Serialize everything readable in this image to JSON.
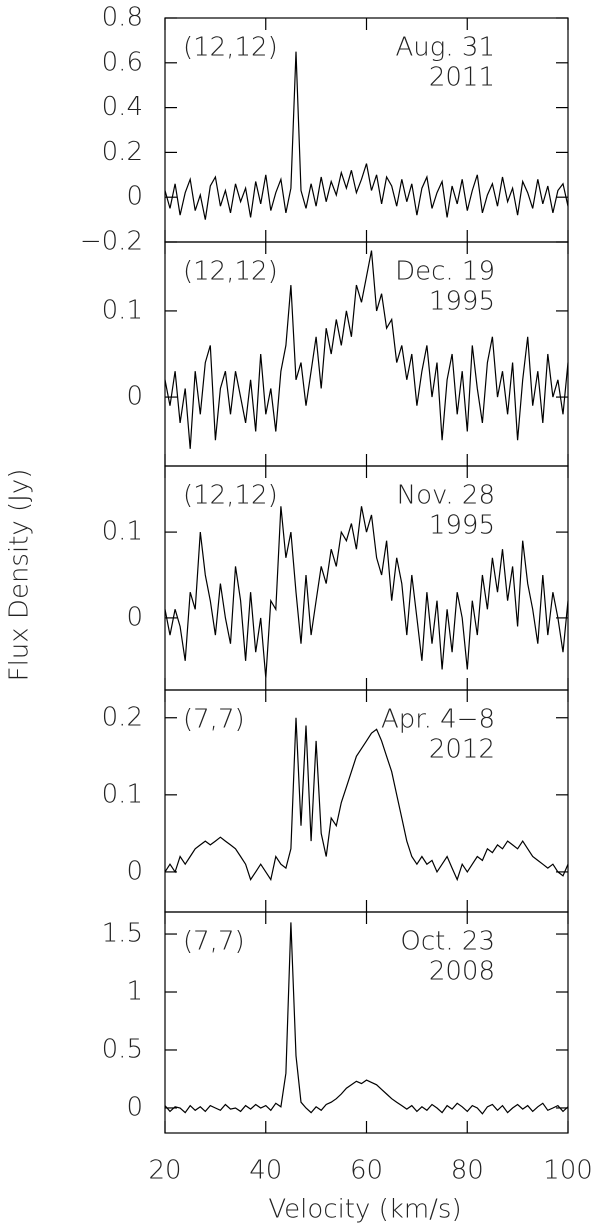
{
  "chart_data": [
    {
      "type": "line",
      "transition": "(12,12)",
      "date": "Aug. 31",
      "year": "2011",
      "color": "#000000",
      "x": [
        20,
        21,
        22,
        23,
        24,
        25,
        26,
        27,
        28,
        29,
        30,
        31,
        32,
        33,
        34,
        35,
        36,
        37,
        38,
        39,
        40,
        41,
        42,
        43,
        44,
        45,
        46,
        47,
        48,
        49,
        50,
        51,
        52,
        53,
        54,
        55,
        56,
        57,
        58,
        59,
        60,
        61,
        62,
        63,
        64,
        65,
        66,
        67,
        68,
        69,
        70,
        71,
        72,
        73,
        74,
        75,
        76,
        77,
        78,
        79,
        80,
        81,
        82,
        83,
        84,
        85,
        86,
        87,
        88,
        89,
        90,
        91,
        92,
        93,
        94,
        95,
        96,
        97,
        98,
        99,
        100
      ],
      "values": [
        0.03,
        -0.05,
        0.06,
        -0.08,
        0.02,
        0.08,
        -0.06,
        0.01,
        -0.1,
        0.05,
        0.09,
        -0.04,
        0.03,
        -0.07,
        0.06,
        -0.02,
        0.04,
        -0.09,
        0.07,
        -0.03,
        0.1,
        -0.06,
        0.02,
        0.08,
        -0.07,
        0.04,
        0.65,
        0.03,
        -0.05,
        0.06,
        -0.04,
        0.09,
        -0.02,
        0.07,
        0.01,
        0.11,
        0.04,
        0.12,
        0.02,
        0.08,
        0.15,
        0.03,
        0.1,
        -0.03,
        0.09,
        0.05,
        -0.04,
        0.08,
        -0.02,
        0.06,
        -0.08,
        0.04,
        0.09,
        -0.05,
        0.02,
        0.07,
        -0.09,
        0.05,
        -0.03,
        0.08,
        -0.06,
        0.03,
        0.1,
        -0.07,
        0.01,
        0.06,
        -0.04,
        0.09,
        -0.02,
        0.04,
        -0.08,
        0.07,
        0.02,
        -0.05,
        0.08,
        -0.03,
        0.05,
        -0.07,
        0.03,
        0.06,
        -0.04
      ],
      "xlim": [
        20,
        100
      ],
      "xticks": [
        20,
        40,
        60,
        80,
        100
      ],
      "ylim": [
        -0.2,
        0.8
      ],
      "yticks": [
        {
          "value": -0.2,
          "label": "−0.2"
        },
        0,
        0.2,
        0.4,
        0.6,
        0.8
      ]
    },
    {
      "type": "line",
      "transition": "(12,12)",
      "date": "Dec. 19",
      "year": "1995",
      "color": "#000000",
      "x": [
        20,
        21,
        22,
        23,
        24,
        25,
        26,
        27,
        28,
        29,
        30,
        31,
        32,
        33,
        34,
        35,
        36,
        37,
        38,
        39,
        40,
        41,
        42,
        43,
        44,
        45,
        46,
        47,
        48,
        49,
        50,
        51,
        52,
        53,
        54,
        55,
        56,
        57,
        58,
        59,
        60,
        61,
        62,
        63,
        64,
        65,
        66,
        67,
        68,
        69,
        70,
        71,
        72,
        73,
        74,
        75,
        76,
        77,
        78,
        79,
        80,
        81,
        82,
        83,
        84,
        85,
        86,
        87,
        88,
        89,
        90,
        91,
        92,
        93,
        94,
        95,
        96,
        97,
        98,
        99,
        100
      ],
      "values": [
        0.02,
        -0.01,
        0.03,
        -0.03,
        0.01,
        -0.06,
        0.03,
        -0.02,
        0.04,
        0.06,
        -0.05,
        0.01,
        0.03,
        -0.02,
        0.03,
        0,
        -0.03,
        0.02,
        -0.04,
        0.05,
        -0.02,
        0.01,
        -0.04,
        0.03,
        0.06,
        0.13,
        0.02,
        0.04,
        -0.01,
        0.03,
        0.07,
        0.01,
        0.08,
        0.05,
        0.09,
        0.06,
        0.1,
        0.07,
        0.13,
        0.11,
        0.14,
        0.17,
        0.1,
        0.12,
        0.08,
        0.09,
        0.04,
        0.06,
        0.02,
        0.05,
        -0.01,
        0.03,
        0.06,
        0,
        0.04,
        -0.05,
        0.02,
        0.05,
        -0.02,
        0.03,
        -0.04,
        0.06,
        0.01,
        -0.03,
        0.04,
        0.07,
        0,
        0.03,
        -0.02,
        0.04,
        -0.05,
        0.02,
        0.07,
        -0.01,
        0.03,
        -0.03,
        0.05,
        0,
        0.02,
        -0.02,
        0.04
      ],
      "xlim": [
        20,
        100
      ],
      "xticks": [
        20,
        40,
        60,
        80,
        100
      ],
      "ylim": [
        -0.08,
        0.18
      ],
      "yticks": [
        0,
        0.1
      ]
    },
    {
      "type": "line",
      "transition": "(12,12)",
      "date": "Nov. 28",
      "year": "1995",
      "color": "#000000",
      "ylabel": "Flux Density (Jy)",
      "x": [
        20,
        21,
        22,
        23,
        24,
        25,
        26,
        27,
        28,
        29,
        30,
        31,
        32,
        33,
        34,
        35,
        36,
        37,
        38,
        39,
        40,
        41,
        42,
        43,
        44,
        45,
        46,
        47,
        48,
        49,
        50,
        51,
        52,
        53,
        54,
        55,
        56,
        57,
        58,
        59,
        60,
        61,
        62,
        63,
        64,
        65,
        66,
        67,
        68,
        69,
        70,
        71,
        72,
        73,
        74,
        75,
        76,
        77,
        78,
        79,
        80,
        81,
        82,
        83,
        84,
        85,
        86,
        87,
        88,
        89,
        90,
        91,
        92,
        93,
        94,
        95,
        96,
        97,
        98,
        99,
        100
      ],
      "values": [
        0.01,
        -0.02,
        0.01,
        -0.01,
        -0.05,
        0.03,
        0.01,
        0.1,
        0.05,
        0.02,
        -0.02,
        0.04,
        0,
        -0.03,
        0.06,
        0.02,
        -0.05,
        0.03,
        -0.04,
        0,
        -0.07,
        0.02,
        0.01,
        0.13,
        0.07,
        0.1,
        0.03,
        -0.03,
        0.05,
        -0.02,
        0.02,
        0.06,
        0.04,
        0.08,
        0.06,
        0.1,
        0.09,
        0.11,
        0.08,
        0.13,
        0.1,
        0.12,
        0.07,
        0.05,
        0.09,
        0.02,
        0.07,
        0.04,
        -0.02,
        0.05,
        0,
        -0.05,
        0.03,
        -0.03,
        0.02,
        -0.06,
        0.01,
        -0.04,
        0.03,
        0,
        -0.06,
        0.02,
        -0.02,
        0.05,
        0.01,
        0.07,
        0.03,
        0.08,
        0.02,
        0.06,
        -0.01,
        0.09,
        0.04,
        0.01,
        -0.03,
        0.05,
        -0.02,
        0.03,
        0,
        -0.04,
        0.02
      ],
      "xlim": [
        20,
        100
      ],
      "xticks": [
        20,
        40,
        60,
        80,
        100
      ],
      "ylim": [
        -0.084,
        0.177
      ],
      "yticks": [
        0,
        0.1
      ]
    },
    {
      "type": "line",
      "transition": "(7,7)",
      "date": "Apr. 4−8",
      "year": "2012",
      "color": "#000000",
      "x": [
        20,
        21,
        22,
        23,
        24,
        25,
        26,
        27,
        28,
        29,
        30,
        31,
        32,
        33,
        34,
        35,
        36,
        37,
        38,
        39,
        40,
        41,
        42,
        43,
        44,
        45,
        46,
        47,
        48,
        49,
        50,
        51,
        52,
        53,
        54,
        55,
        56,
        57,
        58,
        59,
        60,
        61,
        62,
        63,
        64,
        65,
        66,
        67,
        68,
        69,
        70,
        71,
        72,
        73,
        74,
        75,
        76,
        77,
        78,
        79,
        80,
        81,
        82,
        83,
        84,
        85,
        86,
        87,
        88,
        89,
        90,
        91,
        92,
        93,
        94,
        95,
        96,
        97,
        98,
        99,
        100
      ],
      "values": [
        0,
        0.01,
        0,
        0.02,
        0.01,
        0.02,
        0.03,
        0.035,
        0.04,
        0.035,
        0.04,
        0.045,
        0.04,
        0.035,
        0.03,
        0.02,
        0.01,
        -0.01,
        0,
        0.01,
        0,
        -0.01,
        0.02,
        0.01,
        0.005,
        0.03,
        0.2,
        0.06,
        0.19,
        0.04,
        0.17,
        0.05,
        0.02,
        0.07,
        0.06,
        0.09,
        0.11,
        0.13,
        0.15,
        0.16,
        0.17,
        0.18,
        0.185,
        0.17,
        0.15,
        0.13,
        0.1,
        0.07,
        0.04,
        0.02,
        0.01,
        0.02,
        0.01,
        0.015,
        0,
        0.01,
        0.02,
        0.005,
        -0.01,
        0.01,
        0,
        0.01,
        0.02,
        0.015,
        0.03,
        0.025,
        0.035,
        0.03,
        0.04,
        0.035,
        0.03,
        0.04,
        0.03,
        0.02,
        0.015,
        0.01,
        0.005,
        0.01,
        0,
        -0.005,
        0.01
      ],
      "xlim": [
        20,
        100
      ],
      "xticks": [
        20,
        40,
        60,
        80,
        100
      ],
      "ylim": [
        -0.052,
        0.236
      ],
      "yticks": [
        0,
        0.1,
        0.2
      ]
    },
    {
      "type": "line",
      "transition": "(7,7)",
      "date": "Oct. 23",
      "year": "2008",
      "color": "#000000",
      "xlabel": "Velocity (km/s)",
      "x": [
        20,
        21,
        22,
        23,
        24,
        25,
        26,
        27,
        28,
        29,
        30,
        31,
        32,
        33,
        34,
        35,
        36,
        37,
        38,
        39,
        40,
        41,
        42,
        43,
        44,
        45,
        46,
        47,
        48,
        49,
        50,
        51,
        52,
        53,
        54,
        55,
        56,
        57,
        58,
        59,
        60,
        61,
        62,
        63,
        64,
        65,
        66,
        67,
        68,
        69,
        70,
        71,
        72,
        73,
        74,
        75,
        76,
        77,
        78,
        79,
        80,
        81,
        82,
        83,
        84,
        85,
        86,
        87,
        88,
        89,
        90,
        91,
        92,
        93,
        94,
        95,
        96,
        97,
        98,
        99,
        100
      ],
      "values": [
        0.02,
        -0.03,
        0.01,
        0,
        -0.04,
        0.02,
        -0.02,
        0.01,
        -0.03,
        0.02,
        0,
        -0.02,
        0.03,
        -0.01,
        0,
        -0.03,
        0.02,
        -0.01,
        0.03,
        0,
        0.02,
        -0.02,
        0.04,
        0.01,
        0.3,
        1.6,
        0.45,
        0.05,
        0,
        -0.04,
        0.01,
        -0.02,
        0.03,
        0.05,
        0.08,
        0.12,
        0.17,
        0.2,
        0.23,
        0.21,
        0.24,
        0.22,
        0.2,
        0.16,
        0.12,
        0.08,
        0.05,
        0.02,
        -0.01,
        0.02,
        -0.03,
        0.01,
        -0.02,
        0.03,
        0,
        -0.04,
        0.02,
        -0.01,
        0.04,
        0.01,
        -0.03,
        0.02,
        0,
        -0.05,
        0.01,
        0.03,
        -0.02,
        0.02,
        -0.04,
        0,
        0.03,
        -0.01,
        0.02,
        -0.03,
        0.01,
        0.04,
        -0.02,
        0,
        0.02,
        -0.03,
        0.01
      ],
      "xlim": [
        20,
        100
      ],
      "xticks": [
        20,
        40,
        60,
        80,
        100
      ],
      "ylim": [
        -0.216,
        1.69
      ],
      "yticks": [
        0,
        0.5,
        1,
        1.5
      ]
    }
  ]
}
